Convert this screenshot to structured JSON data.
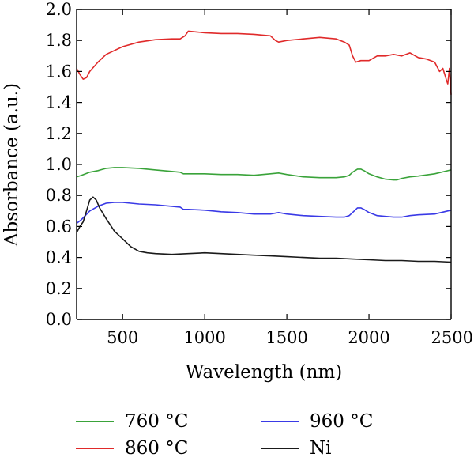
{
  "chart_data": {
    "type": "line",
    "xlabel": "Wavelength (nm)",
    "ylabel": "Absorbance (a.u.)",
    "xlim": [
      220,
      2500
    ],
    "ylim": [
      0,
      2.0
    ],
    "xticks": [
      500,
      1000,
      1500,
      2000,
      2500
    ],
    "xtick_labels": [
      "500",
      "1000",
      "1500",
      "2000",
      "2500"
    ],
    "yticks": [
      0,
      0.2,
      0.4,
      0.6,
      0.8,
      1.0,
      1.2,
      1.4,
      1.6,
      1.8,
      2.0
    ],
    "ytick_labels": [
      "0.0",
      "0.2",
      "0.4",
      "0.6",
      "0.8",
      "1.0",
      "1.2",
      "1.4",
      "1.6",
      "1.8",
      "2.0"
    ],
    "grid": false,
    "legend_position": "bottom",
    "series": [
      {
        "name": "760 °C",
        "color": "#3aa33a",
        "x": [
          220,
          250,
          300,
          350,
          400,
          450,
          500,
          600,
          700,
          800,
          850,
          870,
          900,
          1000,
          1100,
          1200,
          1300,
          1400,
          1450,
          1500,
          1600,
          1700,
          1800,
          1850,
          1880,
          1900,
          1930,
          1950,
          1970,
          2000,
          2050,
          2100,
          2150,
          2170,
          2200,
          2250,
          2300,
          2400,
          2500
        ],
        "y": [
          0.92,
          0.93,
          0.95,
          0.96,
          0.975,
          0.98,
          0.98,
          0.975,
          0.965,
          0.955,
          0.95,
          0.94,
          0.94,
          0.94,
          0.935,
          0.935,
          0.93,
          0.94,
          0.945,
          0.935,
          0.92,
          0.915,
          0.915,
          0.92,
          0.93,
          0.95,
          0.97,
          0.97,
          0.96,
          0.94,
          0.92,
          0.905,
          0.9,
          0.9,
          0.91,
          0.92,
          0.925,
          0.94,
          0.965
        ]
      },
      {
        "name": "860 °C",
        "color": "#e02a2a",
        "x": [
          220,
          240,
          260,
          280,
          300,
          350,
          400,
          500,
          600,
          700,
          800,
          850,
          880,
          900,
          950,
          1000,
          1100,
          1200,
          1300,
          1400,
          1430,
          1450,
          1500,
          1600,
          1700,
          1800,
          1850,
          1880,
          1900,
          1920,
          1950,
          2000,
          2050,
          2100,
          2150,
          2200,
          2250,
          2300,
          2350,
          2400,
          2430,
          2450,
          2470,
          2480,
          2490,
          2500
        ],
        "y": [
          1.62,
          1.58,
          1.55,
          1.56,
          1.6,
          1.66,
          1.71,
          1.76,
          1.79,
          1.805,
          1.81,
          1.81,
          1.83,
          1.86,
          1.855,
          1.85,
          1.845,
          1.845,
          1.84,
          1.83,
          1.8,
          1.79,
          1.8,
          1.81,
          1.82,
          1.81,
          1.79,
          1.77,
          1.7,
          1.66,
          1.67,
          1.67,
          1.7,
          1.7,
          1.71,
          1.7,
          1.72,
          1.69,
          1.68,
          1.66,
          1.6,
          1.62,
          1.55,
          1.52,
          1.62,
          1.45
        ]
      },
      {
        "name": "960 °C",
        "color": "#3a3ae6",
        "x": [
          220,
          250,
          300,
          350,
          400,
          450,
          500,
          600,
          700,
          800,
          850,
          870,
          900,
          1000,
          1100,
          1200,
          1300,
          1400,
          1450,
          1500,
          1600,
          1700,
          1800,
          1850,
          1880,
          1900,
          1930,
          1950,
          1970,
          2000,
          2050,
          2100,
          2150,
          2200,
          2250,
          2300,
          2400,
          2500
        ],
        "y": [
          0.62,
          0.645,
          0.7,
          0.73,
          0.75,
          0.755,
          0.755,
          0.745,
          0.74,
          0.73,
          0.725,
          0.71,
          0.71,
          0.705,
          0.695,
          0.69,
          0.68,
          0.68,
          0.69,
          0.68,
          0.67,
          0.665,
          0.66,
          0.66,
          0.67,
          0.69,
          0.72,
          0.72,
          0.71,
          0.69,
          0.67,
          0.665,
          0.66,
          0.66,
          0.67,
          0.675,
          0.68,
          0.705
        ]
      },
      {
        "name": "Ni",
        "color": "#1a1a1a",
        "x": [
          220,
          240,
          260,
          280,
          300,
          320,
          340,
          360,
          400,
          450,
          500,
          550,
          600,
          650,
          700,
          800,
          900,
          1000,
          1100,
          1200,
          1300,
          1400,
          1500,
          1600,
          1700,
          1800,
          1900,
          2000,
          2100,
          2200,
          2300,
          2400,
          2500
        ],
        "y": [
          0.56,
          0.6,
          0.63,
          0.7,
          0.77,
          0.79,
          0.77,
          0.72,
          0.65,
          0.57,
          0.52,
          0.47,
          0.44,
          0.43,
          0.425,
          0.42,
          0.425,
          0.43,
          0.425,
          0.42,
          0.415,
          0.41,
          0.405,
          0.4,
          0.395,
          0.395,
          0.39,
          0.385,
          0.38,
          0.38,
          0.375,
          0.375,
          0.37
        ]
      }
    ]
  }
}
